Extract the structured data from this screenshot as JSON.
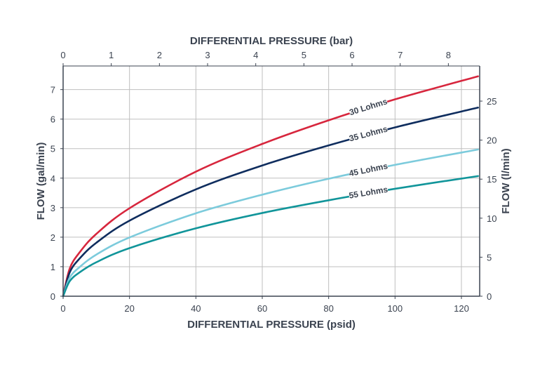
{
  "chart_data": {
    "type": "line",
    "title": "",
    "xlabel": "DIFFERENTIAL PRESSURE (psid)",
    "ylabel": "FLOW (gal/min)",
    "x2label": "DIFFERENTIAL PRESSURE (bar)",
    "y2label": "FLOW (l/min)",
    "xlim": [
      0,
      125.5
    ],
    "ylim": [
      0,
      7.8
    ],
    "x2lim": [
      0,
      8.65
    ],
    "y2lim": [
      0,
      29.5
    ],
    "x_ticks": [
      0,
      20,
      40,
      60,
      80,
      100,
      120
    ],
    "y_ticks": [
      0,
      1,
      2,
      3,
      4,
      5,
      6,
      7
    ],
    "x2_ticks": [
      0,
      1,
      2,
      3,
      4,
      5,
      6,
      7,
      8
    ],
    "y2_ticks": [
      0,
      5,
      10,
      15,
      20,
      25
    ],
    "grid": true,
    "series": [
      {
        "name": "30 Lohms",
        "color": "#d7263d",
        "x": [
          0,
          2,
          5,
          10,
          20,
          40,
          60,
          80,
          100,
          125
        ],
        "y": [
          0,
          0.94,
          1.49,
          2.11,
          2.98,
          4.22,
          5.16,
          5.96,
          6.67,
          7.45
        ]
      },
      {
        "name": "35 Lohms",
        "color": "#0f2d5e",
        "x": [
          0,
          2,
          5,
          10,
          20,
          40,
          60,
          80,
          100,
          125
        ],
        "y": [
          0,
          0.81,
          1.28,
          1.81,
          2.56,
          3.62,
          4.43,
          5.11,
          5.72,
          6.39
        ]
      },
      {
        "name": "45 Lohms",
        "color": "#7ccbdc",
        "x": [
          0,
          2,
          5,
          10,
          20,
          40,
          60,
          80,
          100,
          125
        ],
        "y": [
          0,
          0.63,
          0.99,
          1.41,
          1.99,
          2.81,
          3.44,
          3.98,
          4.45,
          4.97
        ]
      },
      {
        "name": "55 Lohms",
        "color": "#11959a",
        "x": [
          0,
          2,
          5,
          10,
          20,
          40,
          60,
          80,
          100,
          125
        ],
        "y": [
          0,
          0.51,
          0.81,
          1.15,
          1.63,
          2.3,
          2.82,
          3.25,
          3.64,
          4.07
        ]
      }
    ]
  }
}
